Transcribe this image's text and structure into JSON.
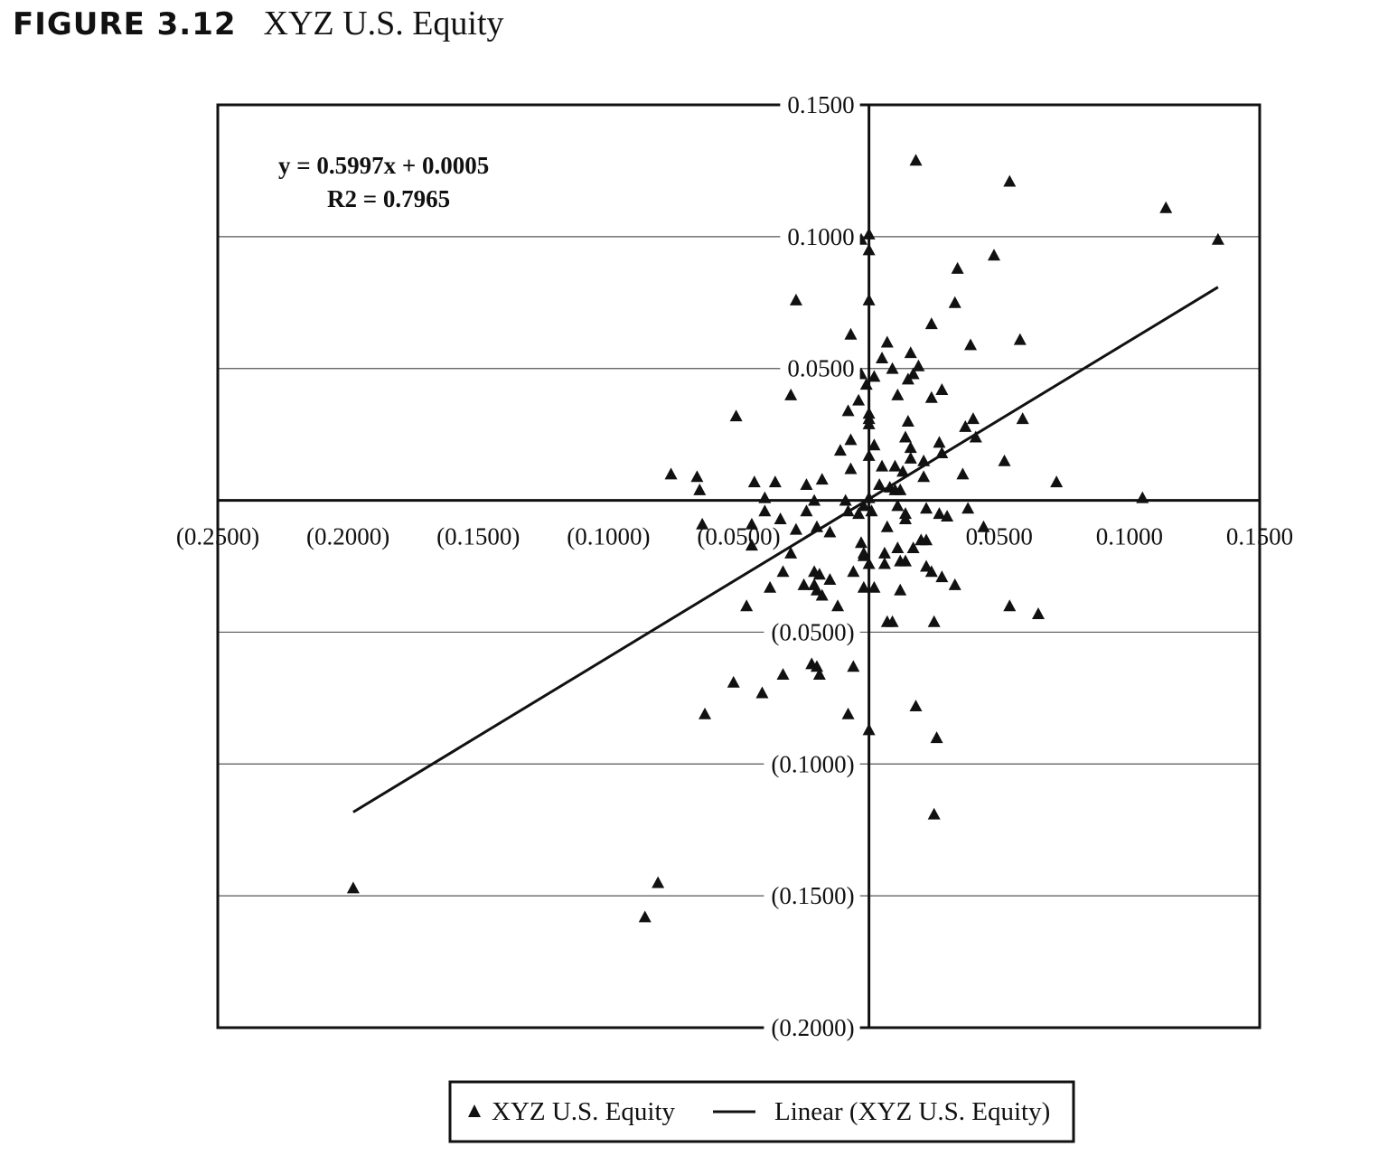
{
  "figure": {
    "label": "FIGURE 3.12",
    "title": "XYZ U.S. Equity"
  },
  "colors": {
    "ink": "#111111",
    "gridline": "#555555",
    "background": "#ffffff"
  },
  "chart_data": {
    "type": "scatter",
    "title": "XYZ U.S. Equity",
    "xlabel": "",
    "ylabel": "",
    "xlim": [
      -0.25,
      0.15
    ],
    "ylim": [
      -0.2,
      0.15
    ],
    "grid": {
      "horizontal": true,
      "vertical": false
    },
    "legend_position": "bottom-center",
    "x_ticks": [
      -0.25,
      -0.2,
      -0.15,
      -0.1,
      -0.05,
      0.05,
      0.1,
      0.15
    ],
    "x_tick_labels": [
      "(0.2500)",
      "(0.2000)",
      "(0.1500)",
      "(0.1000)",
      "(0.0500)",
      "0.0500",
      "0.1000",
      "0.1500"
    ],
    "y_ticks": [
      0.15,
      0.1,
      0.05,
      -0.05,
      -0.1,
      -0.15,
      -0.2
    ],
    "y_tick_labels": [
      "0.1500",
      "0.1000",
      "0.0500",
      "(0.0500)",
      "(0.1000)",
      "(0.1500)",
      "(0.2000)"
    ],
    "annotations": {
      "equation": "y = 0.5997x + 0.0005",
      "r_squared": "R2 = 0.7965"
    },
    "trendline": {
      "slope": 0.5997,
      "intercept": 0.0005,
      "x_range": [
        -0.198,
        0.134
      ]
    },
    "series": [
      {
        "name": "XYZ U.S. Equity",
        "marker": "triangle",
        "points": [
          [
            0.018,
            0.129
          ],
          [
            0.054,
            0.121
          ],
          [
            0.114,
            0.111
          ],
          [
            0.134,
            0.099
          ],
          [
            -0.003,
            0.099
          ],
          [
            0.0,
            0.101
          ],
          [
            0.0,
            0.095
          ],
          [
            0.048,
            0.093
          ],
          [
            0.034,
            0.088
          ],
          [
            -0.028,
            0.076
          ],
          [
            0.0,
            0.076
          ],
          [
            0.033,
            0.075
          ],
          [
            0.024,
            0.067
          ],
          [
            -0.007,
            0.063
          ],
          [
            0.058,
            0.061
          ],
          [
            0.039,
            0.059
          ],
          [
            0.007,
            0.06
          ],
          [
            0.016,
            0.056
          ],
          [
            0.005,
            0.054
          ],
          [
            0.019,
            0.051
          ],
          [
            0.009,
            0.05
          ],
          [
            0.017,
            0.048
          ],
          [
            -0.003,
            0.048
          ],
          [
            0.002,
            0.047
          ],
          [
            0.015,
            0.046
          ],
          [
            -0.001,
            0.044
          ],
          [
            0.028,
            0.042
          ],
          [
            -0.03,
            0.04
          ],
          [
            0.011,
            0.04
          ],
          [
            0.024,
            0.039
          ],
          [
            -0.004,
            0.038
          ],
          [
            -0.008,
            0.034
          ],
          [
            0.0,
            0.033
          ],
          [
            0.0,
            0.031
          ],
          [
            -0.051,
            0.032
          ],
          [
            0.059,
            0.031
          ],
          [
            0.04,
            0.031
          ],
          [
            0.015,
            0.03
          ],
          [
            0.037,
            0.028
          ],
          [
            0.0,
            0.029
          ],
          [
            0.014,
            0.024
          ],
          [
            0.041,
            0.024
          ],
          [
            -0.007,
            0.023
          ],
          [
            0.027,
            0.022
          ],
          [
            0.002,
            0.021
          ],
          [
            0.016,
            0.02
          ],
          [
            -0.011,
            0.019
          ],
          [
            0.028,
            0.018
          ],
          [
            0.0,
            0.017
          ],
          [
            0.016,
            0.016
          ],
          [
            0.021,
            0.015
          ],
          [
            0.052,
            0.015
          ],
          [
            0.005,
            0.013
          ],
          [
            0.01,
            0.013
          ],
          [
            -0.007,
            0.012
          ],
          [
            0.013,
            0.011
          ],
          [
            0.036,
            0.01
          ],
          [
            -0.076,
            0.01
          ],
          [
            -0.066,
            0.009
          ],
          [
            0.021,
            0.009
          ],
          [
            -0.018,
            0.008
          ],
          [
            0.072,
            0.007
          ],
          [
            -0.044,
            0.007
          ],
          [
            -0.036,
            0.007
          ],
          [
            -0.024,
            0.006
          ],
          [
            0.004,
            0.006
          ],
          [
            0.008,
            0.005
          ],
          [
            0.01,
            0.004
          ],
          [
            0.012,
            0.004
          ],
          [
            -0.065,
            0.004
          ],
          [
            -0.04,
            0.001
          ],
          [
            -0.021,
            0.0
          ],
          [
            0.0,
            0.001
          ],
          [
            0.105,
            0.001
          ],
          [
            -0.009,
            0.0
          ],
          [
            -0.002,
            -0.002
          ],
          [
            0.011,
            -0.002
          ],
          [
            0.022,
            -0.003
          ],
          [
            0.038,
            -0.003
          ],
          [
            -0.04,
            -0.004
          ],
          [
            -0.024,
            -0.004
          ],
          [
            0.001,
            -0.004
          ],
          [
            -0.008,
            -0.004
          ],
          [
            -0.004,
            -0.005
          ],
          [
            0.014,
            -0.005
          ],
          [
            0.027,
            -0.005
          ],
          [
            0.03,
            -0.006
          ],
          [
            0.014,
            -0.007
          ],
          [
            -0.034,
            -0.007
          ],
          [
            -0.064,
            -0.009
          ],
          [
            -0.045,
            -0.009
          ],
          [
            -0.02,
            -0.01
          ],
          [
            0.007,
            -0.01
          ],
          [
            0.044,
            -0.01
          ],
          [
            -0.028,
            -0.011
          ],
          [
            -0.015,
            -0.012
          ],
          [
            0.02,
            -0.015
          ],
          [
            0.022,
            -0.015
          ],
          [
            -0.045,
            -0.017
          ],
          [
            -0.003,
            -0.016
          ],
          [
            0.011,
            -0.018
          ],
          [
            0.017,
            -0.018
          ],
          [
            0.006,
            -0.02
          ],
          [
            -0.002,
            -0.02
          ],
          [
            -0.03,
            -0.02
          ],
          [
            -0.002,
            -0.021
          ],
          [
            0.014,
            -0.023
          ],
          [
            0.0,
            -0.024
          ],
          [
            0.012,
            -0.023
          ],
          [
            0.006,
            -0.024
          ],
          [
            0.022,
            -0.025
          ],
          [
            0.024,
            -0.027
          ],
          [
            -0.033,
            -0.027
          ],
          [
            -0.021,
            -0.027
          ],
          [
            -0.006,
            -0.027
          ],
          [
            -0.019,
            -0.028
          ],
          [
            0.028,
            -0.029
          ],
          [
            -0.015,
            -0.03
          ],
          [
            -0.025,
            -0.032
          ],
          [
            -0.021,
            -0.032
          ],
          [
            0.033,
            -0.032
          ],
          [
            -0.038,
            -0.033
          ],
          [
            -0.002,
            -0.033
          ],
          [
            0.002,
            -0.033
          ],
          [
            -0.02,
            -0.034
          ],
          [
            0.012,
            -0.034
          ],
          [
            -0.018,
            -0.036
          ],
          [
            -0.047,
            -0.04
          ],
          [
            -0.012,
            -0.04
          ],
          [
            0.054,
            -0.04
          ],
          [
            0.065,
            -0.043
          ],
          [
            0.007,
            -0.046
          ],
          [
            0.009,
            -0.046
          ],
          [
            0.025,
            -0.046
          ],
          [
            -0.022,
            -0.048
          ],
          [
            -0.022,
            -0.062
          ],
          [
            -0.02,
            -0.063
          ],
          [
            -0.006,
            -0.063
          ],
          [
            -0.019,
            -0.066
          ],
          [
            -0.033,
            -0.066
          ],
          [
            -0.052,
            -0.069
          ],
          [
            -0.041,
            -0.073
          ],
          [
            0.018,
            -0.078
          ],
          [
            -0.063,
            -0.081
          ],
          [
            -0.008,
            -0.081
          ],
          [
            0.0,
            -0.087
          ],
          [
            0.026,
            -0.09
          ],
          [
            0.025,
            -0.119
          ],
          [
            -0.198,
            -0.147
          ],
          [
            -0.081,
            -0.145
          ],
          [
            -0.086,
            -0.158
          ]
        ]
      },
      {
        "name": "Linear (XYZ U.S. Equity)",
        "type": "line"
      }
    ]
  }
}
